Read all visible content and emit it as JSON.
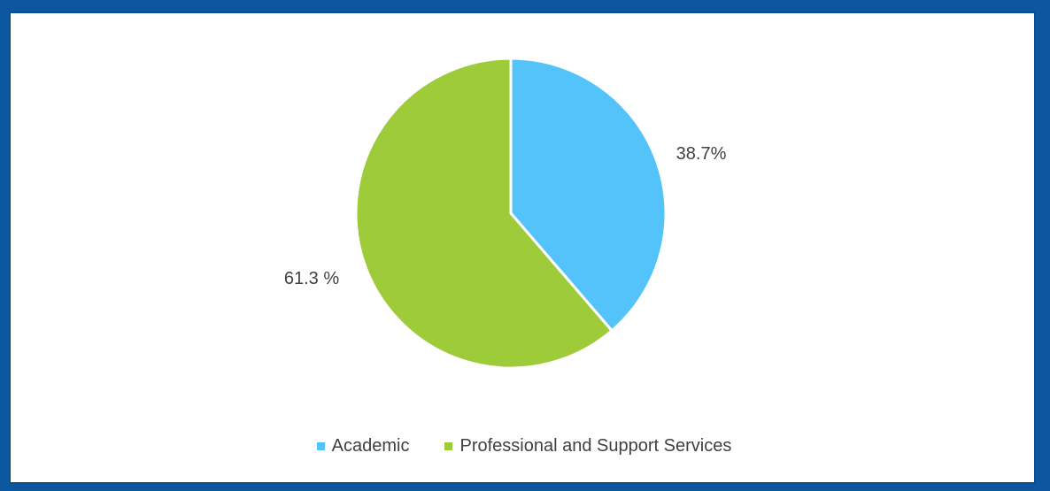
{
  "chart_data": {
    "type": "pie",
    "slices": [
      {
        "name": "Academic",
        "value": 38.7,
        "label": "38.7%",
        "color": "#54c3f9"
      },
      {
        "name": "Professional and Support Services",
        "value": 61.3,
        "label": "61.3 %",
        "color": "#9dcb39"
      }
    ],
    "legend": {
      "placement": "bottom",
      "entries": [
        "Academic",
        "Professional and Support Services"
      ]
    }
  }
}
